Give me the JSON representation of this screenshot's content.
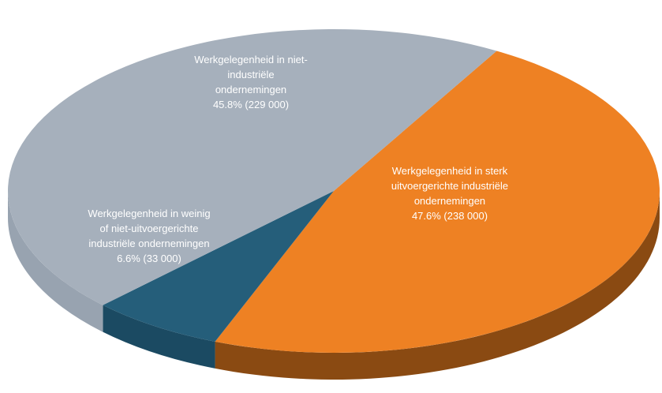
{
  "chart_data": {
    "type": "pie",
    "title": "",
    "three_d": true,
    "slices": [
      {
        "label_lines": [
          "Werkgelegenheid in sterk",
          "uitvoergerichte industriële",
          "ondernemingen",
          "47.6% (238 000)"
        ],
        "percent": 47.6,
        "value": 238000,
        "color": "#EE8123",
        "side_color": "#8A4A12"
      },
      {
        "label_lines": [
          "Werkgelegenheid in weinig",
          "of niet-uitvoergerichte",
          "industriële ondernemingen",
          "6.6% (33 000)"
        ],
        "percent": 6.6,
        "value": 33000,
        "color": "#255E7A",
        "side_color": "#1B4A62"
      },
      {
        "label_lines": [
          "Werkgelegenheid in niet-",
          "industriële",
          "ondernemingen",
          "45.8% (229 000)"
        ],
        "percent": 45.8,
        "value": 229000,
        "color": "#A6B0BC",
        "side_color": "#98A3B0"
      }
    ]
  }
}
